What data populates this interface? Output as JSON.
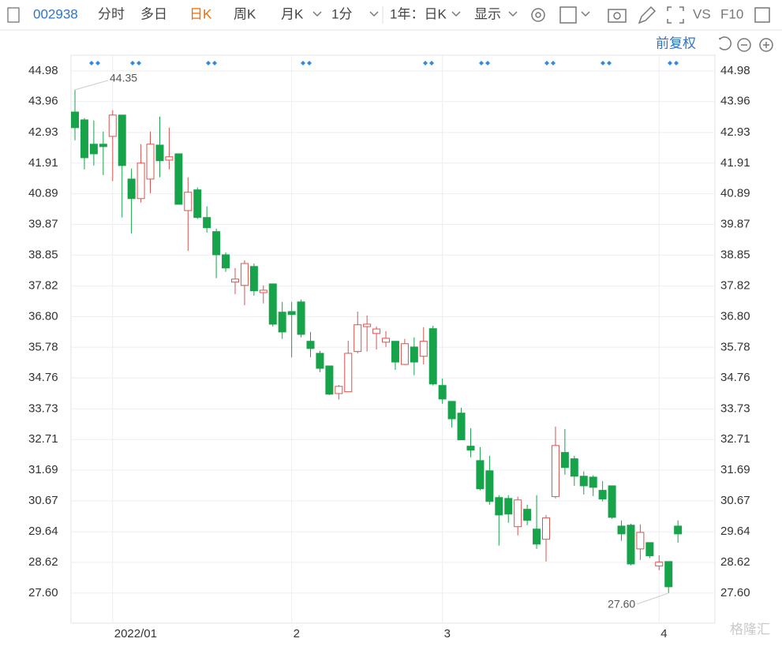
{
  "toolbar": {
    "code": "002938",
    "tabs": [
      "分时",
      "多日",
      "日K",
      "周K",
      "月K"
    ],
    "interval": "1分",
    "range": "1年：日K",
    "display": "显示",
    "vs": "VS",
    "f10": "F10",
    "adjust": "前复权"
  },
  "watermark": "格隆汇",
  "chart_data": {
    "type": "candlestick",
    "categories": [
      null,
      null,
      null,
      null,
      "2022/01",
      null,
      null,
      null,
      null,
      null,
      null,
      null,
      null,
      null,
      null,
      null,
      null,
      null,
      null,
      null,
      null,
      null,
      null,
      "2",
      null,
      null,
      null,
      null,
      null,
      null,
      null,
      null,
      null,
      null,
      null,
      null,
      null,
      null,
      null,
      "3",
      null,
      null,
      null,
      null,
      null,
      null,
      null,
      null,
      null,
      null,
      null,
      null,
      null,
      null,
      null,
      null,
      null,
      null,
      null,
      null,
      null,
      null,
      "4",
      null,
      null
    ],
    "open": [
      43.61,
      43.35,
      42.54,
      42.54,
      42.8,
      43.51,
      41.38,
      40.73,
      41.38,
      42.51,
      42.01,
      42.22,
      40.33,
      41.02,
      40.1,
      39.63,
      38.86,
      37.95,
      37.84,
      38.47,
      37.6,
      37.89,
      36.95,
      36.97,
      37.29,
      35.98,
      35.58,
      35.16,
      34.24,
      34.3,
      35.64,
      36.47,
      36.24,
      35.95,
      35.98,
      35.21,
      35.79,
      35.48,
      36.4,
      34.51,
      33.98,
      33.59,
      32.49,
      32.01,
      31.67,
      30.78,
      30.75,
      29.81,
      30.39,
      29.73,
      29.39,
      30.81,
      32.28,
      32.07,
      31.49,
      31.46,
      31.02,
      31.17,
      29.83,
      29.86,
      29.07,
      29.28,
      28.5,
      28.65,
      29.83
    ],
    "high": [
      44.35,
      43.41,
      43.33,
      42.96,
      43.67,
      43.51,
      41.73,
      42.54,
      42.96,
      43.46,
      43.09,
      42.22,
      41.44,
      41.1,
      40.47,
      39.73,
      38.94,
      38.42,
      38.68,
      38.57,
      37.84,
      37.89,
      37.29,
      37.29,
      37.37,
      36.29,
      35.66,
      35.16,
      34.53,
      36.0,
      36.97,
      36.84,
      36.47,
      36.32,
      35.98,
      36.06,
      36.11,
      36.45,
      36.5,
      34.74,
      33.98,
      33.77,
      33.09,
      32.46,
      32.17,
      30.86,
      30.86,
      30.81,
      30.54,
      30.86,
      30.2,
      33.14,
      33.06,
      32.17,
      31.65,
      31.52,
      31.33,
      31.17,
      30.02,
      29.91,
      29.89,
      29.28,
      28.86,
      28.65,
      30.02
    ],
    "low": [
      42.67,
      41.7,
      41.83,
      41.51,
      41.31,
      40.1,
      39.57,
      40.6,
      40.91,
      41.44,
      41.7,
      40.54,
      38.99,
      40.05,
      39.6,
      38.08,
      38.29,
      37.55,
      37.18,
      37.5,
      37.24,
      36.47,
      36.06,
      35.45,
      36.11,
      35.45,
      34.95,
      34.19,
      34.04,
      34.3,
      35.58,
      35.64,
      35.71,
      35.79,
      35.03,
      35.19,
      34.85,
      35.21,
      34.51,
      33.9,
      33.11,
      32.7,
      32.12,
      31.02,
      30.54,
      29.18,
      29.94,
      29.52,
      29.86,
      29.07,
      28.65,
      30.75,
      31.54,
      31.17,
      30.88,
      30.83,
      30.65,
      30.07,
      29.34,
      28.52,
      28.7,
      28.76,
      28.36,
      27.6,
      29.28
    ],
    "close": [
      43.09,
      42.09,
      42.22,
      42.46,
      43.51,
      41.83,
      40.73,
      41.91,
      42.54,
      41.99,
      42.12,
      40.54,
      40.94,
      40.1,
      39.76,
      38.86,
      38.42,
      38.05,
      38.57,
      37.66,
      37.68,
      36.55,
      36.29,
      36.87,
      36.21,
      35.74,
      35.08,
      34.22,
      34.48,
      35.58,
      36.53,
      36.55,
      36.39,
      36.08,
      35.29,
      35.9,
      35.29,
      35.98,
      34.56,
      34.06,
      33.4,
      32.7,
      32.36,
      31.07,
      30.65,
      30.2,
      30.23,
      30.7,
      30.02,
      29.23,
      30.1,
      32.51,
      31.78,
      31.49,
      31.17,
      31.12,
      30.73,
      30.12,
      29.57,
      28.57,
      29.62,
      28.84,
      28.63,
      27.81,
      29.57
    ],
    "up_color": "#d9534f",
    "down_color": "#17a34a",
    "max_label": "44.35",
    "min_label": "27.60",
    "ylim": [
      26.6,
      45.37
    ],
    "yticks": [
      {
        "value": 27.6,
        "label": "27.60"
      },
      28.62,
      29.64,
      30.67,
      31.69,
      32.71,
      33.73,
      34.76,
      35.78,
      {
        "value": 36.8,
        "label": "36.80"
      },
      37.82,
      38.85,
      39.87,
      40.89,
      41.91,
      42.93,
      43.96,
      44.98
    ],
    "grid": true
  }
}
